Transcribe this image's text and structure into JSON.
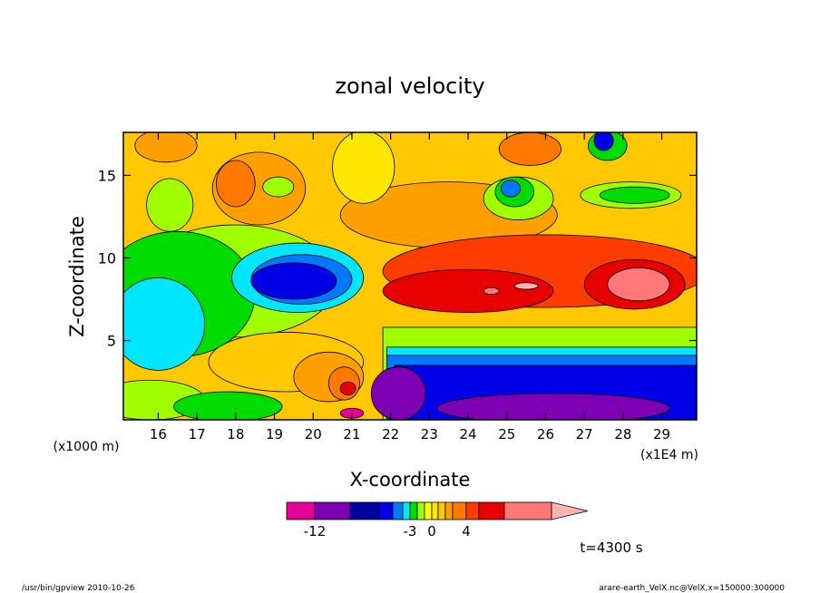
{
  "chart_data": {
    "type": "heatmap",
    "title": "zonal velocity",
    "xlabel": "X-coordinate",
    "ylabel": "Z-coordinate",
    "x_unit_left": "(x1000 m)",
    "x_unit_right": "(x1E4 m)",
    "xlim": [
      15.1,
      29.9
    ],
    "ylim": [
      0.2,
      17.6
    ],
    "x_ticks": [
      "16",
      "17",
      "18",
      "19",
      "20",
      "21",
      "22",
      "23",
      "24",
      "25",
      "26",
      "27",
      "28",
      "29"
    ],
    "y_ticks": [
      "5",
      "10",
      "15"
    ],
    "colorbar": {
      "levels": [
        -16,
        -14,
        -12,
        -10,
        -8,
        -6,
        -4,
        -3,
        -2,
        -1,
        0,
        1,
        2,
        3,
        4,
        6,
        8,
        10
      ],
      "colors": [
        "#e6009a",
        "#7d00b4",
        "#0000a0",
        "#0000e6",
        "#0078ff",
        "#00e6ff",
        "#00dc00",
        "#a0ff00",
        "#ffff00",
        "#ffe600",
        "#ffc800",
        "#ffa000",
        "#ff7800",
        "#ff3c00",
        "#e60000",
        "#ff7878",
        "#ffb4b4"
      ],
      "tick_labels": [
        "-12",
        "-3",
        "0",
        "4"
      ],
      "tick_values": [
        -12,
        -3,
        0,
        4
      ]
    },
    "annotations": {
      "time": "t=4300 s",
      "footer_left": "/usr/bin/gpview  2010-10-26",
      "footer_right": "arare-earth_VelX.nc@VelX,x=150000:300000"
    }
  }
}
